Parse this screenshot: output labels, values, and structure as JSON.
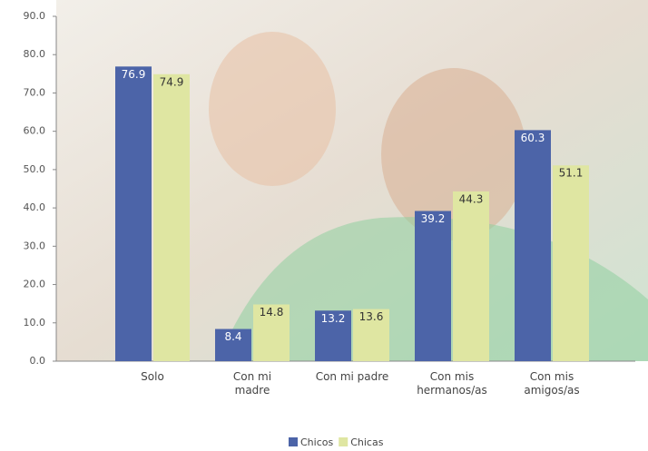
{
  "chart_data": {
    "type": "bar",
    "categories": [
      "Solo",
      "Con mi\nmadre",
      "Con mi padre",
      "Con mis\nhermanos/as",
      "Con mis\namigos/as"
    ],
    "series": [
      {
        "name": "Chicos",
        "color": "#4c64a8",
        "values": [
          76.9,
          8.4,
          13.2,
          39.2,
          60.3
        ]
      },
      {
        "name": "Chicas",
        "color": "#dfe6a2",
        "values": [
          74.9,
          14.8,
          13.6,
          44.3,
          51.1
        ]
      }
    ],
    "ylim": [
      0,
      90
    ],
    "yticks": [
      {
        "value": 0,
        "label": "0.0"
      },
      {
        "value": 10,
        "label": "10.0"
      },
      {
        "value": 20,
        "label": "20.0"
      },
      {
        "value": 30,
        "label": "30.0"
      },
      {
        "value": 40,
        "label": "40.0"
      },
      {
        "value": 50,
        "label": "50.0"
      },
      {
        "value": 60,
        "label": "60.0"
      },
      {
        "value": 70,
        "label": "70.0"
      },
      {
        "value": 80,
        "label": "80.0"
      },
      {
        "value": 90,
        "label": "90.0"
      }
    ],
    "legend": "bottom"
  }
}
